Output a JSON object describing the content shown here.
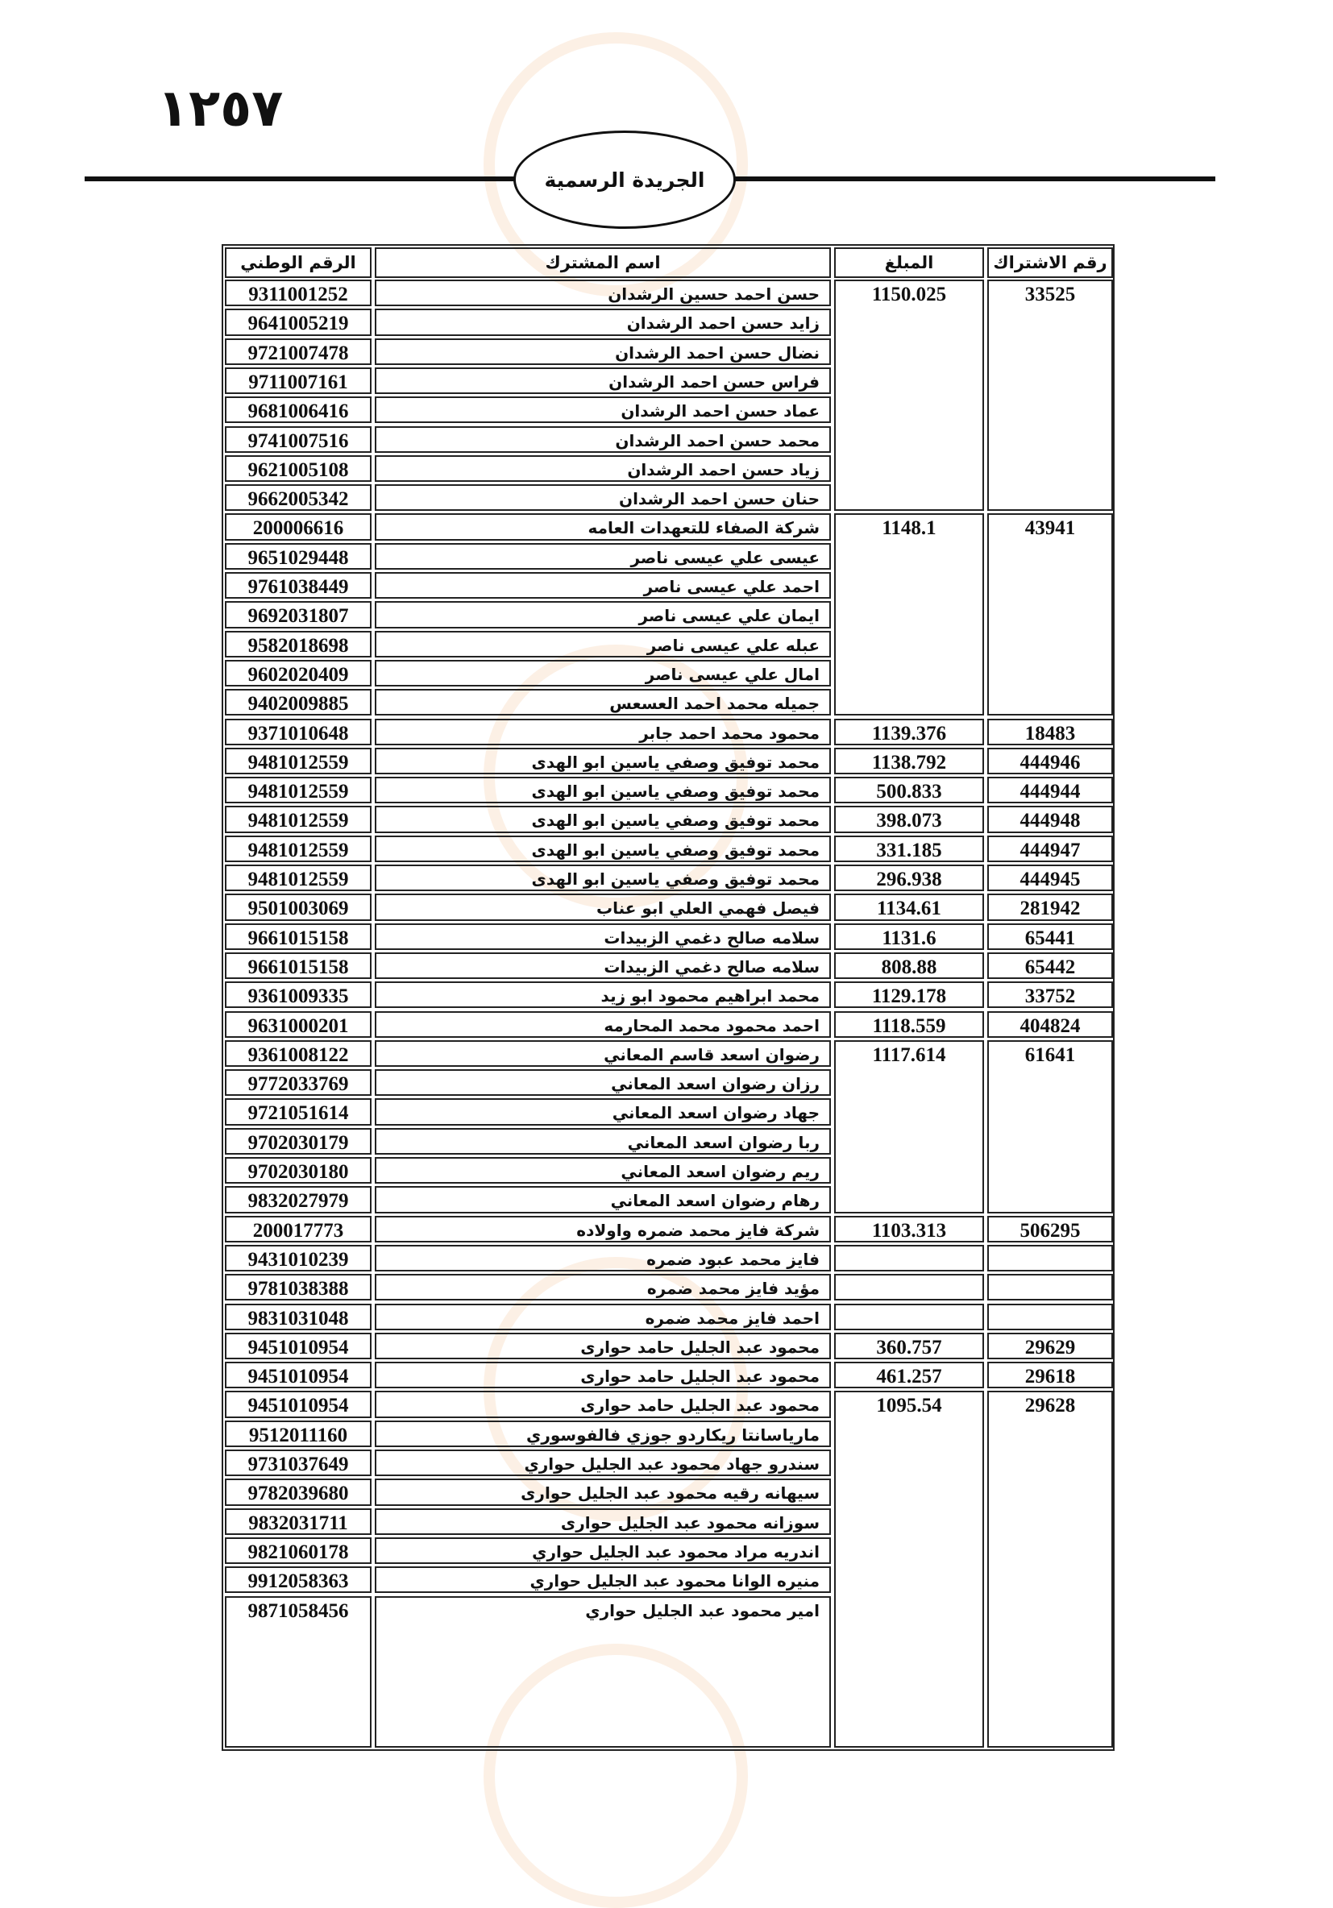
{
  "page_number": "١٢٥٧",
  "header_title": "الجريدة الرسمية",
  "columns": {
    "subscription": "رقم الاشتراك",
    "amount": "المبلغ",
    "name": "اسم المشترك",
    "national_id": "الرقم الوطني"
  },
  "groups": [
    {
      "subscription": "33525",
      "amount": "1150.025",
      "members": [
        {
          "name": "حسن احمد حسين الرشدان",
          "national_id": "9311001252"
        },
        {
          "name": "زايد حسن احمد الرشدان",
          "national_id": "9641005219"
        },
        {
          "name": "نضال حسن احمد الرشدان",
          "national_id": "9721007478"
        },
        {
          "name": "فراس حسن احمد الرشدان",
          "national_id": "9711007161"
        },
        {
          "name": "عماد حسن احمد الرشدان",
          "national_id": "9681006416"
        },
        {
          "name": "محمد حسن احمد الرشدان",
          "national_id": "9741007516"
        },
        {
          "name": "زياد حسن احمد الرشدان",
          "national_id": "9621005108"
        },
        {
          "name": "حنان حسن احمد الرشدان",
          "national_id": "9662005342"
        }
      ]
    },
    {
      "subscription": "43941",
      "amount": "1148.1",
      "members": [
        {
          "name": "شركة الصفاء للتعهدات العامه",
          "national_id": "200006616"
        },
        {
          "name": "عيسى علي عيسى ناصر",
          "national_id": "9651029448"
        },
        {
          "name": "احمد علي عيسى ناصر",
          "national_id": "9761038449"
        },
        {
          "name": "ايمان علي عيسى ناصر",
          "national_id": "9692031807"
        },
        {
          "name": "عبله علي عيسى ناصر",
          "national_id": "9582018698"
        },
        {
          "name": "امال علي عيسى ناصر",
          "national_id": "9602020409"
        },
        {
          "name": "جميله محمد احمد العسعس",
          "national_id": "9402009885"
        }
      ]
    },
    {
      "subscription": "18483",
      "amount": "1139.376",
      "members": [
        {
          "name": "محمود محمد احمد جابر",
          "national_id": "9371010648"
        }
      ]
    },
    {
      "subscription": "444946",
      "amount": "1138.792",
      "members": [
        {
          "name": "محمد توفيق وصفي ياسين ابو الهدى",
          "national_id": "9481012559"
        }
      ]
    },
    {
      "subscription": "444944",
      "amount": "500.833",
      "members": [
        {
          "name": "محمد توفيق وصفي ياسين ابو الهدى",
          "national_id": "9481012559"
        }
      ]
    },
    {
      "subscription": "444948",
      "amount": "398.073",
      "members": [
        {
          "name": "محمد توفيق وصفي ياسين ابو الهدى",
          "national_id": "9481012559"
        }
      ]
    },
    {
      "subscription": "444947",
      "amount": "331.185",
      "members": [
        {
          "name": "محمد توفيق وصفي ياسين ابو الهدى",
          "national_id": "9481012559"
        }
      ]
    },
    {
      "subscription": "444945",
      "amount": "296.938",
      "members": [
        {
          "name": "محمد توفيق وصفي ياسين ابو الهدى",
          "national_id": "9481012559"
        }
      ]
    },
    {
      "subscription": "281942",
      "amount": "1134.61",
      "members": [
        {
          "name": "فيصل فهمي العلي ابو عناب",
          "national_id": "9501003069"
        }
      ]
    },
    {
      "subscription": "65441",
      "amount": "1131.6",
      "members": [
        {
          "name": "سلامه صالح دغمي الزبيدات",
          "national_id": "9661015158"
        }
      ]
    },
    {
      "subscription": "65442",
      "amount": "808.88",
      "members": [
        {
          "name": "سلامه صالح دغمي الزبيدات",
          "national_id": "9661015158"
        }
      ]
    },
    {
      "subscription": "33752",
      "amount": "1129.178",
      "members": [
        {
          "name": "محمد ابراهيم محمود ابو زيد",
          "national_id": "9361009335"
        }
      ]
    },
    {
      "subscription": "404824",
      "amount": "1118.559",
      "members": [
        {
          "name": "احمد محمود محمد المحارمه",
          "national_id": "9631000201"
        }
      ]
    },
    {
      "subscription": "61641",
      "amount": "1117.614",
      "members": [
        {
          "name": "رضوان اسعد قاسم المعاني",
          "national_id": "9361008122"
        },
        {
          "name": "رزان رضوان اسعد المعاني",
          "national_id": "9772033769"
        },
        {
          "name": "جهاد رضوان اسعد المعاني",
          "national_id": "9721051614"
        },
        {
          "name": "ربا رضوان اسعد المعاني",
          "national_id": "9702030179"
        },
        {
          "name": "ريم رضوان اسعد المعاني",
          "national_id": "9702030180"
        },
        {
          "name": "رهام رضوان اسعد المعاني",
          "national_id": "9832027979"
        }
      ]
    },
    {
      "subscription": "506295",
      "amount": "1103.313",
      "members": [
        {
          "name": "شركة فايز محمد ضمره واولاده",
          "national_id": "200017773"
        }
      ]
    },
    {
      "subscription": "",
      "amount": "",
      "members": [
        {
          "name": "فايز محمد عبود ضمره",
          "national_id": "9431010239"
        }
      ]
    },
    {
      "subscription": "",
      "amount": "",
      "members": [
        {
          "name": "مؤيد فايز محمد ضمره",
          "national_id": "9781038388"
        }
      ]
    },
    {
      "subscription": "",
      "amount": "",
      "members": [
        {
          "name": "احمد فايز محمد ضمره",
          "national_id": "9831031048"
        }
      ]
    },
    {
      "subscription": "29629",
      "amount": "360.757",
      "members": [
        {
          "name": "محمود عبد الجليل حامد حوارى",
          "national_id": "9451010954"
        }
      ]
    },
    {
      "subscription": "29618",
      "amount": "461.257",
      "members": [
        {
          "name": "محمود عبد الجليل حامد حوارى",
          "national_id": "9451010954"
        }
      ]
    },
    {
      "subscription": "29628",
      "amount": "1095.54",
      "members": [
        {
          "name": "محمود عبد الجليل حامد حوارى",
          "national_id": "9451010954"
        },
        {
          "name": "مارياسانتا ريكاردو جوزي فالفوسوري",
          "national_id": "9512011160"
        },
        {
          "name": "سندرو جهاد محمود عبد الجليل حواري",
          "national_id": "9731037649"
        },
        {
          "name": "سيهانه رقيه محمود عبد الجليل حوارى",
          "national_id": "9782039680"
        },
        {
          "name": "سوزانه محمود عبد الجليل حوارى",
          "national_id": "9832031711"
        },
        {
          "name": "اندريه مراد محمود عبد الجليل حواري",
          "national_id": "9821060178"
        },
        {
          "name": "منيره الوانا محمود عبد الجليل حواري",
          "national_id": "9912058363"
        },
        {
          "name": "امير محمود عبد الجليل حواري",
          "national_id": "9871058456"
        }
      ]
    }
  ]
}
